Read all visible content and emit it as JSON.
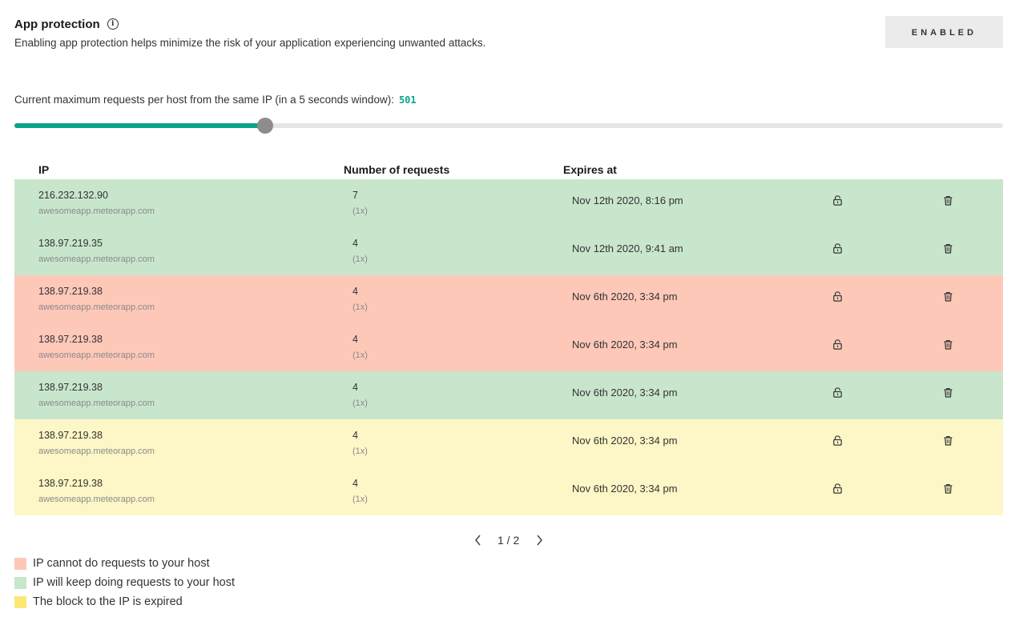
{
  "header": {
    "title": "App protection",
    "info_icon": "info-icon",
    "subtitle": "Enabling app protection helps minimize the risk of your application experiencing unwanted attacks.",
    "enabled_label": "ENABLED"
  },
  "limit": {
    "label": "Current maximum requests per host from the same IP (in a 5 seconds window):",
    "value": "501",
    "slider_fraction": 0.254,
    "accent_color": "#0aa38a"
  },
  "table": {
    "columns": [
      "IP",
      "Number of requests",
      "Expires at"
    ],
    "rows": [
      {
        "status": "green",
        "ip": "216.232.132.90",
        "host": "awesomeapp.meteorapp.com",
        "count": "7",
        "mult": "(1x)",
        "expires": "Nov 12th 2020, 8:16 pm"
      },
      {
        "status": "green",
        "ip": "138.97.219.35",
        "host": "awesomeapp.meteorapp.com",
        "count": "4",
        "mult": "(1x)",
        "expires": "Nov 12th 2020, 9:41 am"
      },
      {
        "status": "red",
        "ip": "138.97.219.38",
        "host": "awesomeapp.meteorapp.com",
        "count": "4",
        "mult": "(1x)",
        "expires": "Nov 6th 2020, 3:34 pm"
      },
      {
        "status": "red",
        "ip": "138.97.219.38",
        "host": "awesomeapp.meteorapp.com",
        "count": "4",
        "mult": "(1x)",
        "expires": "Nov 6th 2020, 3:34 pm"
      },
      {
        "status": "green",
        "ip": "138.97.219.38",
        "host": "awesomeapp.meteorapp.com",
        "count": "4",
        "mult": "(1x)",
        "expires": "Nov 6th 2020, 3:34 pm"
      },
      {
        "status": "yellow",
        "ip": "138.97.219.38",
        "host": "awesomeapp.meteorapp.com",
        "count": "4",
        "mult": "(1x)",
        "expires": "Nov 6th 2020, 3:34 pm"
      },
      {
        "status": "yellow",
        "ip": "138.97.219.38",
        "host": "awesomeapp.meteorapp.com",
        "count": "4",
        "mult": "(1x)",
        "expires": "Nov 6th 2020, 3:34 pm"
      }
    ],
    "row_icons": [
      "unlock-icon",
      "trash-icon"
    ]
  },
  "pagination": {
    "text": "1 / 2",
    "prev_icon": "chevron-left-icon",
    "next_icon": "chevron-right-icon"
  },
  "legend": [
    {
      "color": "#fec8b9",
      "label": "IP cannot do requests to your host"
    },
    {
      "color": "#c8e6cc",
      "label": "IP will keep doing requests to your host"
    },
    {
      "color": "#fde774",
      "label": "The block to the IP is expired"
    }
  ]
}
